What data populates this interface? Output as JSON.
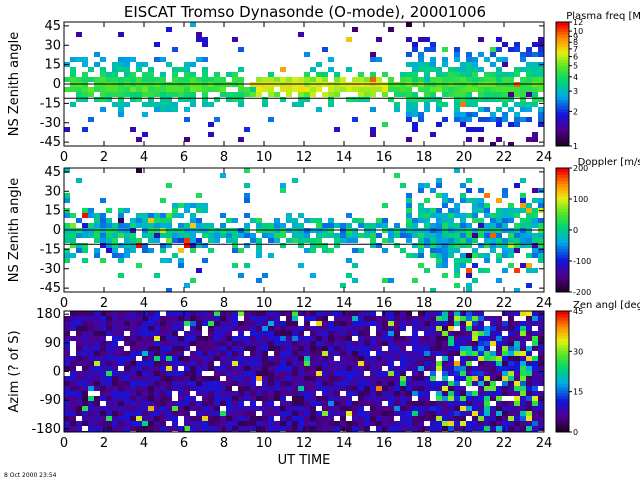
{
  "title": "EISCAT Tromso Dynasonde (O-mode),  20001006",
  "timestamp": "8 Oct 2000 23:54",
  "chart_data": [
    {
      "type": "heatmap",
      "id": "plasma-freq",
      "ylabel": "NS Zenith angle",
      "xlabel": "",
      "xlim": [
        0,
        24
      ],
      "ylim": [
        -48,
        48
      ],
      "xticks": [
        "0",
        "2",
        "4",
        "6",
        "8",
        "10",
        "12",
        "14",
        "16",
        "18",
        "20",
        "22",
        "24"
      ],
      "yticks": [
        "45",
        "30",
        "15",
        "0",
        "-15",
        "-30",
        "-45"
      ],
      "reference_lines_y": [
        0,
        -11
      ],
      "colorbar": {
        "title": "Plasma freq [MHz]",
        "scale": "log",
        "range": [
          1,
          12
        ],
        "ticks": [
          "12",
          "10",
          "9",
          "8",
          "7",
          "6",
          "5",
          "4",
          "3",
          "2",
          "1"
        ]
      }
    },
    {
      "type": "heatmap",
      "id": "doppler",
      "ylabel": "NS Zenith angle",
      "xlabel": "",
      "xlim": [
        0,
        24
      ],
      "ylim": [
        -48,
        48
      ],
      "xticks": [
        "0",
        "2",
        "4",
        "6",
        "8",
        "10",
        "12",
        "14",
        "16",
        "18",
        "20",
        "22",
        "24"
      ],
      "yticks": [
        "45",
        "30",
        "15",
        "0",
        "-15",
        "-30",
        "-45"
      ],
      "reference_lines_y": [
        0,
        -11
      ],
      "colorbar": {
        "title": "Doppler [m/s]",
        "scale": "linear",
        "range": [
          -200,
          200
        ],
        "ticks": [
          "200",
          "100",
          "0",
          "-100",
          "-200"
        ]
      }
    },
    {
      "type": "heatmap",
      "id": "azimuth",
      "ylabel": "Azim (? of S)",
      "xlabel": "UT TIME",
      "xlim": [
        0,
        24
      ],
      "ylim": [
        -190,
        190
      ],
      "xticks": [
        "0",
        "2",
        "4",
        "6",
        "8",
        "10",
        "12",
        "14",
        "16",
        "18",
        "20",
        "22",
        "24"
      ],
      "yticks": [
        "180",
        "90",
        "0",
        "-90",
        "-180"
      ],
      "reference_lines_y": [],
      "colorbar": {
        "title": "Zen angl [degr]",
        "scale": "linear",
        "range": [
          0,
          45
        ],
        "ticks": [
          "45",
          "30",
          "15",
          "0"
        ]
      }
    }
  ]
}
